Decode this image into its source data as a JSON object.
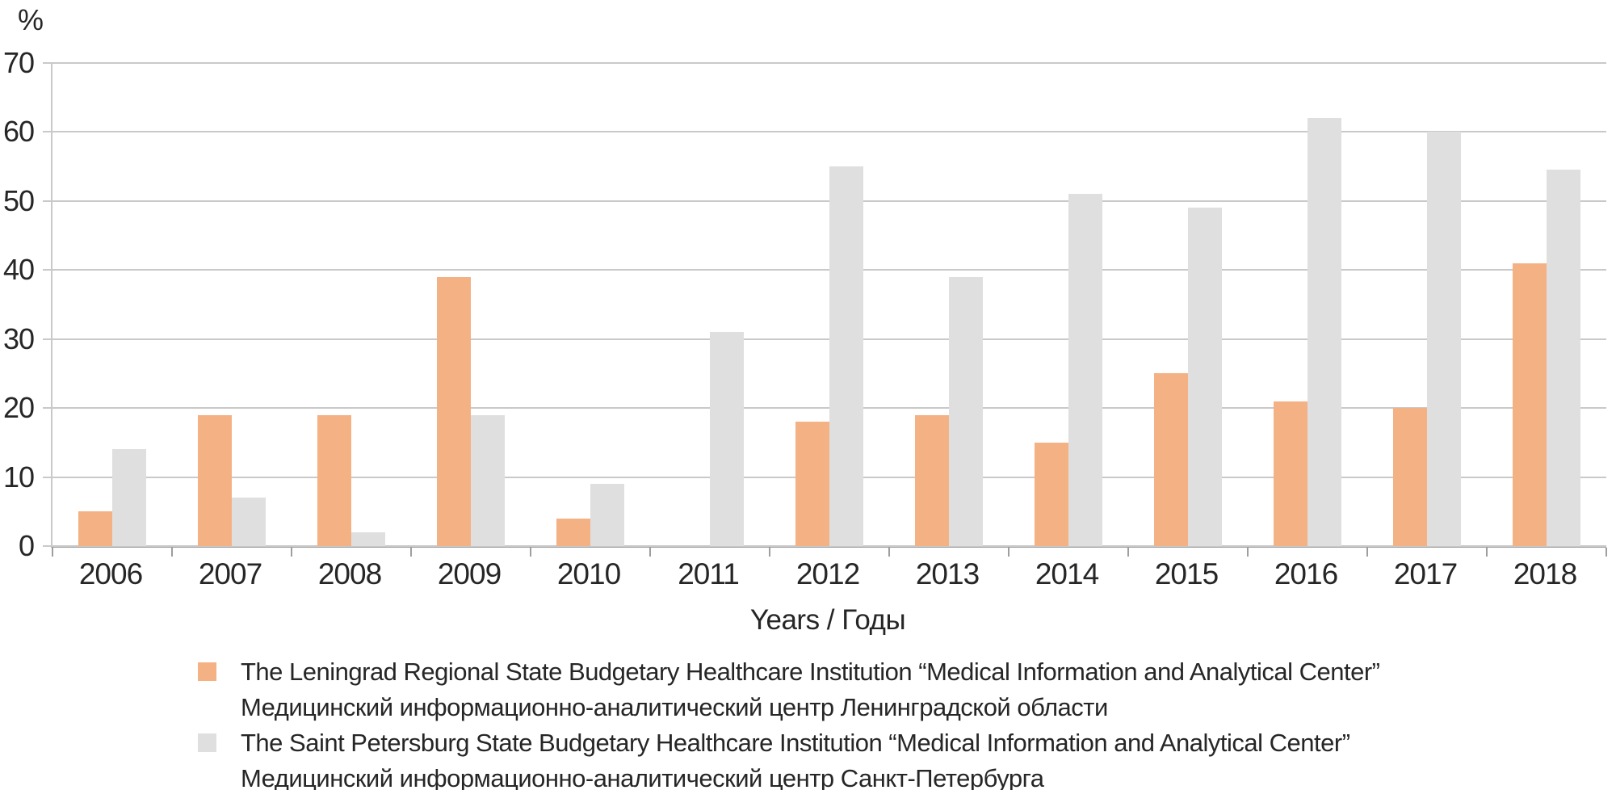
{
  "unit_label": "%",
  "chart_data": {
    "type": "bar",
    "title": "",
    "xlabel": "Years / Годы",
    "ylabel": "%",
    "ylim": [
      0,
      70
    ],
    "yticks": [
      0,
      10,
      20,
      30,
      40,
      50,
      60,
      70
    ],
    "grid": true,
    "legend_position": "bottom",
    "categories": [
      "2006",
      "2007",
      "2008",
      "2009",
      "2010",
      "2011",
      "2012",
      "2013",
      "2014",
      "2015",
      "2016",
      "2017",
      "2018"
    ],
    "series": [
      {
        "id": "leningrad-miac",
        "label_en": "The Leningrad Regional State Budgetary Healthcare Institution “Medical Information and Analytical Center”",
        "label_ru": "Медицинский информационно-аналитический центр Ленинградской области",
        "color": "#F4B183",
        "values": [
          5,
          19,
          19,
          39,
          4,
          0,
          18,
          19,
          15,
          25,
          21,
          20,
          41
        ]
      },
      {
        "id": "spb-miac",
        "label_en": "The Saint Petersburg State Budgetary Healthcare Institution “Medical Information and Analytical Center”",
        "label_ru": "Медицинский информационно-аналитический центр Санкт-Петербурга",
        "color": "#DFDFDF",
        "values": [
          14,
          7,
          2,
          19,
          9,
          31,
          55,
          39,
          51,
          49,
          62,
          60,
          54.5
        ]
      }
    ]
  }
}
